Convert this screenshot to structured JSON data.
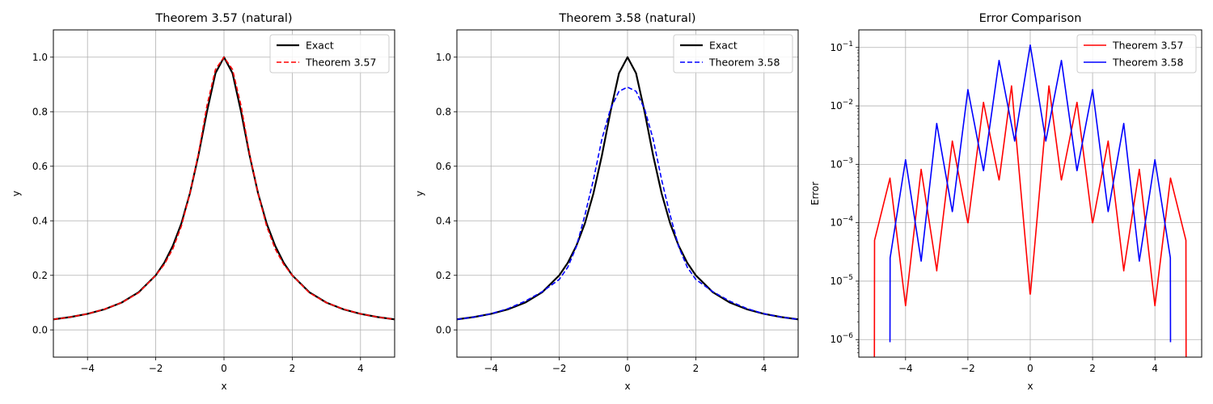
{
  "chart_data": [
    {
      "type": "line",
      "title": "Theorem 3.57 (natural)",
      "xlabel": "x",
      "ylabel": "y",
      "xlim": [
        -5,
        5
      ],
      "ylim": [
        -0.1,
        1.1
      ],
      "xticks": [
        -4,
        -2,
        0,
        2,
        4
      ],
      "xtick_labels": [
        "−4",
        "−2",
        "0",
        "2",
        "4"
      ],
      "yticks": [
        0.0,
        0.2,
        0.4,
        0.6,
        0.8,
        1.0
      ],
      "ytick_labels": [
        "0.0",
        "0.2",
        "0.4",
        "0.6",
        "0.8",
        "1.0"
      ],
      "grid": true,
      "legend_position": "top-right",
      "series": [
        {
          "name": "Exact",
          "color": "#000000",
          "style": "solid",
          "x": [
            -5,
            -4.5,
            -4,
            -3.5,
            -3,
            -2.5,
            -2,
            -1.75,
            -1.5,
            -1.25,
            -1,
            -0.75,
            -0.5,
            -0.25,
            0,
            0.25,
            0.5,
            0.75,
            1,
            1.25,
            1.5,
            1.75,
            2,
            2.5,
            3,
            3.5,
            4,
            4.5,
            5
          ],
          "y": [
            0.0385,
            0.047,
            0.0588,
            0.0755,
            0.1,
            0.138,
            0.2,
            0.246,
            0.308,
            0.39,
            0.5,
            0.64,
            0.8,
            0.941,
            1.0,
            0.941,
            0.8,
            0.64,
            0.5,
            0.39,
            0.308,
            0.246,
            0.2,
            0.138,
            0.1,
            0.0755,
            0.0588,
            0.047,
            0.0385
          ]
        },
        {
          "name": "Theorem 3.57",
          "color": "#ff0000",
          "style": "dashed",
          "x": [
            -5,
            -4.5,
            -4,
            -3.5,
            -3,
            -2.5,
            -2,
            -1.75,
            -1.5,
            -1.25,
            -1,
            -0.75,
            -0.5,
            -0.25,
            0,
            0.25,
            0.5,
            0.75,
            1,
            1.25,
            1.5,
            1.75,
            2,
            2.5,
            3,
            3.5,
            4,
            4.5,
            5
          ],
          "y": [
            0.0385,
            0.047,
            0.0588,
            0.076,
            0.1,
            0.136,
            0.2,
            0.24,
            0.297,
            0.38,
            0.5,
            0.645,
            0.822,
            0.955,
            1.0,
            0.955,
            0.822,
            0.645,
            0.5,
            0.38,
            0.297,
            0.24,
            0.2,
            0.136,
            0.1,
            0.076,
            0.0588,
            0.047,
            0.0385
          ]
        }
      ]
    },
    {
      "type": "line",
      "title": "Theorem 3.58 (natural)",
      "xlabel": "x",
      "ylabel": "y",
      "xlim": [
        -5,
        5
      ],
      "ylim": [
        -0.1,
        1.1
      ],
      "xticks": [
        -4,
        -2,
        0,
        2,
        4
      ],
      "xtick_labels": [
        "−4",
        "−2",
        "0",
        "2",
        "4"
      ],
      "yticks": [
        0.0,
        0.2,
        0.4,
        0.6,
        0.8,
        1.0
      ],
      "ytick_labels": [
        "0.0",
        "0.2",
        "0.4",
        "0.6",
        "0.8",
        "1.0"
      ],
      "grid": true,
      "legend_position": "top-right",
      "series": [
        {
          "name": "Exact",
          "color": "#000000",
          "style": "solid",
          "x": [
            -5,
            -4.5,
            -4,
            -3.5,
            -3,
            -2.5,
            -2,
            -1.75,
            -1.5,
            -1.25,
            -1,
            -0.75,
            -0.5,
            -0.25,
            0,
            0.25,
            0.5,
            0.75,
            1,
            1.25,
            1.5,
            1.75,
            2,
            2.5,
            3,
            3.5,
            4,
            4.5,
            5
          ],
          "y": [
            0.0385,
            0.047,
            0.0588,
            0.0755,
            0.1,
            0.138,
            0.2,
            0.246,
            0.308,
            0.39,
            0.5,
            0.64,
            0.8,
            0.941,
            1.0,
            0.941,
            0.8,
            0.64,
            0.5,
            0.39,
            0.308,
            0.246,
            0.2,
            0.138,
            0.1,
            0.0755,
            0.0588,
            0.047,
            0.0385
          ]
        },
        {
          "name": "Theorem 3.58",
          "color": "#0000ff",
          "style": "dashed",
          "x": [
            -5,
            -4.5,
            -4,
            -3.5,
            -3,
            -2.5,
            -2,
            -1.75,
            -1.5,
            -1.25,
            -1,
            -0.75,
            -0.5,
            -0.25,
            0,
            0.25,
            0.5,
            0.75,
            1,
            1.25,
            1.5,
            1.75,
            2,
            2.5,
            3,
            3.5,
            4,
            4.5,
            5
          ],
          "y": [
            0.0385,
            0.047,
            0.059,
            0.078,
            0.105,
            0.14,
            0.185,
            0.23,
            0.305,
            0.42,
            0.55,
            0.7,
            0.81,
            0.875,
            0.89,
            0.875,
            0.81,
            0.7,
            0.55,
            0.42,
            0.305,
            0.23,
            0.185,
            0.14,
            0.105,
            0.078,
            0.059,
            0.047,
            0.0385
          ]
        }
      ]
    },
    {
      "type": "line",
      "title": "Error Comparison",
      "xlabel": "x",
      "ylabel": "Error",
      "yscale": "log",
      "xlim": [
        -5.5,
        5.5
      ],
      "ylim": [
        5e-07,
        0.2
      ],
      "xticks": [
        -4,
        -2,
        0,
        2,
        4
      ],
      "xtick_labels": [
        "−4",
        "−2",
        "0",
        "2",
        "4"
      ],
      "yticks": [
        1e-06,
        1e-05,
        0.0001,
        0.001,
        0.01,
        0.1
      ],
      "ytick_labels": [
        "10−6",
        "10−5",
        "10−4",
        "10−3",
        "10−2",
        "10−1"
      ],
      "grid": true,
      "legend_position": "top-right",
      "series": [
        {
          "name": "Theorem 3.57",
          "color": "#ff0000",
          "x": [
            -5,
            -4.995,
            -4.5,
            -4.005,
            -4,
            -3.995,
            -3.5,
            -3.005,
            -3,
            -2.995,
            -2.5,
            -2.005,
            -2,
            -1.995,
            -1.5,
            -1.005,
            -1,
            -0.995,
            -0.6,
            -0.005,
            0,
            0.005,
            0.6,
            0.995,
            1,
            1.005,
            1.5,
            1.995,
            2,
            2.005,
            2.5,
            2.995,
            3,
            3.005,
            3.5,
            3.995,
            4,
            4.005,
            4.5,
            4.995,
            5
          ],
          "y": [
            5e-07,
            5e-05,
            0.00058,
            4e-06,
            3.8e-06,
            4e-06,
            0.00082,
            1.6e-05,
            1.5e-05,
            1.6e-05,
            0.0025,
            0.0001,
            0.0001,
            0.0001,
            0.0115,
            0.00055,
            0.00054,
            0.00055,
            0.022,
            6e-06,
            6e-06,
            6e-06,
            0.022,
            0.00055,
            0.00054,
            0.00055,
            0.0115,
            0.0001,
            0.0001,
            0.0001,
            0.0025,
            1.6e-05,
            1.5e-05,
            1.6e-05,
            0.00082,
            4e-06,
            3.8e-06,
            4e-06,
            0.00058,
            5e-05,
            5e-07
          ]
        },
        {
          "name": "Theorem 3.58",
          "color": "#0000ff",
          "x": [
            -4.5,
            -4.495,
            -4,
            -3.505,
            -3.5,
            -3.495,
            -3,
            -2.505,
            -2.5,
            -2.495,
            -2,
            -1.505,
            -1.5,
            -1.495,
            -1,
            -0.505,
            -0.5,
            -0.495,
            0,
            0.495,
            0.5,
            0.505,
            1,
            1.495,
            1.5,
            1.505,
            2,
            2.495,
            2.5,
            2.505,
            3,
            3.495,
            3.5,
            3.505,
            4,
            4.495,
            4.5
          ],
          "y": [
            9e-07,
            2.5e-05,
            0.0012,
            2.3e-05,
            2.2e-05,
            2.3e-05,
            0.005,
            0.00016,
            0.000155,
            0.00016,
            0.019,
            0.0008,
            0.00078,
            0.0008,
            0.06,
            0.0026,
            0.0025,
            0.0026,
            0.11,
            0.0026,
            0.0025,
            0.0026,
            0.06,
            0.0008,
            0.00078,
            0.0008,
            0.019,
            0.00016,
            0.000155,
            0.00016,
            0.005,
            2.3e-05,
            2.2e-05,
            2.3e-05,
            0.0012,
            2.5e-05,
            9e-07
          ]
        }
      ]
    }
  ]
}
